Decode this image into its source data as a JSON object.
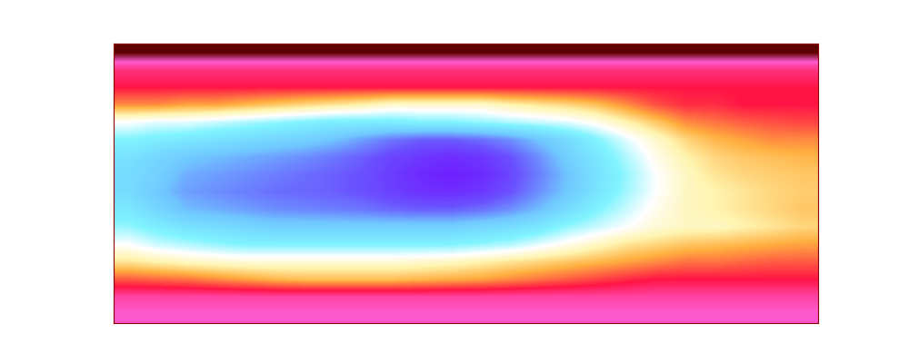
{
  "chart_data": {
    "type": "heatmap",
    "tick_labels": false,
    "cells": [
      [
        0.0,
        0.0,
        0.0,
        0.0,
        0.0,
        0.0,
        0.0,
        0.0,
        0.0,
        0.0,
        0.0,
        0.0,
        0.0,
        0.0,
        0.0,
        0.0,
        0.0,
        0.0,
        0.0,
        0.0,
        0.0,
        0.0,
        0.0,
        0.0
      ],
      [
        0.15,
        0.15,
        0.15,
        0.15,
        0.15,
        0.15,
        0.15,
        0.15,
        0.15,
        0.15,
        0.15,
        0.15,
        0.15,
        0.15,
        0.15,
        0.15,
        0.15,
        0.15,
        0.15,
        0.15,
        0.15,
        0.15,
        0.15,
        0.15
      ],
      [
        0.2,
        0.2,
        0.2,
        0.2,
        0.2,
        0.2,
        0.2,
        0.2,
        0.2,
        0.2,
        0.2,
        0.2,
        0.2,
        0.2,
        0.2,
        0.2,
        0.2,
        0.2,
        0.2,
        0.2,
        0.2,
        0.2,
        0.2,
        0.2
      ],
      [
        0.3,
        0.3,
        0.32,
        0.32,
        0.34,
        0.36,
        0.38,
        0.4,
        0.42,
        0.45,
        0.45,
        0.45,
        0.45,
        0.42,
        0.4,
        0.38,
        0.35,
        0.3,
        0.25,
        0.22,
        0.22,
        0.2,
        0.2,
        0.2
      ],
      [
        0.5,
        0.52,
        0.52,
        0.54,
        0.56,
        0.58,
        0.6,
        0.62,
        0.62,
        0.62,
        0.6,
        0.6,
        0.58,
        0.56,
        0.54,
        0.52,
        0.48,
        0.42,
        0.36,
        0.3,
        0.28,
        0.26,
        0.25,
        0.24
      ],
      [
        0.6,
        0.62,
        0.64,
        0.66,
        0.68,
        0.7,
        0.72,
        0.75,
        0.8,
        0.85,
        0.88,
        0.88,
        0.86,
        0.82,
        0.75,
        0.68,
        0.6,
        0.52,
        0.45,
        0.38,
        0.34,
        0.32,
        0.3,
        0.3
      ],
      [
        0.66,
        0.7,
        0.74,
        0.76,
        0.78,
        0.8,
        0.82,
        0.85,
        0.88,
        0.92,
        0.95,
        0.97,
        0.95,
        0.9,
        0.82,
        0.72,
        0.64,
        0.56,
        0.48,
        0.42,
        0.38,
        0.36,
        0.35,
        0.34
      ],
      [
        0.68,
        0.72,
        0.78,
        0.8,
        0.82,
        0.84,
        0.86,
        0.88,
        0.9,
        0.94,
        0.98,
        1.0,
        0.98,
        0.92,
        0.84,
        0.75,
        0.66,
        0.58,
        0.5,
        0.44,
        0.4,
        0.38,
        0.37,
        0.36
      ],
      [
        0.68,
        0.74,
        0.8,
        0.82,
        0.84,
        0.86,
        0.87,
        0.88,
        0.9,
        0.93,
        0.96,
        0.97,
        0.95,
        0.9,
        0.82,
        0.74,
        0.65,
        0.57,
        0.5,
        0.44,
        0.42,
        0.4,
        0.38,
        0.37
      ],
      [
        0.64,
        0.7,
        0.76,
        0.78,
        0.8,
        0.82,
        0.83,
        0.84,
        0.85,
        0.87,
        0.88,
        0.88,
        0.86,
        0.82,
        0.76,
        0.68,
        0.6,
        0.54,
        0.48,
        0.44,
        0.42,
        0.4,
        0.38,
        0.36
      ],
      [
        0.58,
        0.62,
        0.66,
        0.68,
        0.7,
        0.72,
        0.72,
        0.72,
        0.72,
        0.72,
        0.72,
        0.72,
        0.7,
        0.68,
        0.64,
        0.58,
        0.54,
        0.5,
        0.46,
        0.44,
        0.44,
        0.42,
        0.4,
        0.38
      ],
      [
        0.5,
        0.54,
        0.56,
        0.58,
        0.6,
        0.6,
        0.6,
        0.6,
        0.6,
        0.6,
        0.6,
        0.6,
        0.58,
        0.56,
        0.52,
        0.48,
        0.44,
        0.4,
        0.38,
        0.36,
        0.35,
        0.34,
        0.33,
        0.32
      ],
      [
        0.4,
        0.42,
        0.44,
        0.45,
        0.46,
        0.46,
        0.46,
        0.46,
        0.46,
        0.46,
        0.45,
        0.44,
        0.42,
        0.4,
        0.38,
        0.36,
        0.34,
        0.32,
        0.3,
        0.28,
        0.28,
        0.27,
        0.26,
        0.26
      ],
      [
        0.26,
        0.27,
        0.28,
        0.3,
        0.32,
        0.34,
        0.35,
        0.35,
        0.35,
        0.35,
        0.34,
        0.33,
        0.32,
        0.3,
        0.28,
        0.26,
        0.24,
        0.22,
        0.2,
        0.2,
        0.2,
        0.2,
        0.2,
        0.2
      ],
      [
        0.12,
        0.12,
        0.12,
        0.12,
        0.12,
        0.12,
        0.12,
        0.12,
        0.12,
        0.12,
        0.12,
        0.12,
        0.12,
        0.12,
        0.12,
        0.12,
        0.12,
        0.12,
        0.12,
        0.12,
        0.12,
        0.12,
        0.12,
        0.12
      ],
      [
        0.08,
        0.08,
        0.08,
        0.08,
        0.08,
        0.08,
        0.08,
        0.08,
        0.08,
        0.08,
        0.08,
        0.08,
        0.08,
        0.08,
        0.08,
        0.08,
        0.08,
        0.08,
        0.08,
        0.08,
        0.08,
        0.08,
        0.08,
        0.08
      ]
    ]
  }
}
